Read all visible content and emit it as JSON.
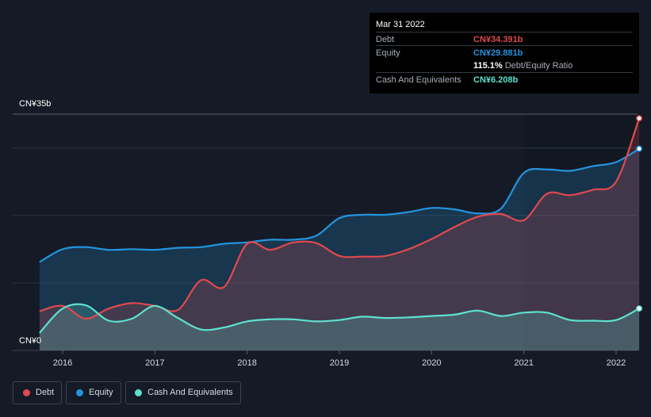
{
  "chart_data": {
    "type": "area",
    "currency_top_label": "CN¥35b",
    "currency_bottom_label": "CN¥0",
    "ylim": [
      0,
      35
    ],
    "xlim": [
      2015.7,
      2022.25
    ],
    "x_ticks": [
      "2016",
      "2017",
      "2018",
      "2019",
      "2020",
      "2021",
      "2022"
    ],
    "series": [
      {
        "name": "Debt",
        "color": "#e0494f",
        "x": [
          2015.75,
          2016.0,
          2016.25,
          2016.5,
          2016.75,
          2017.0,
          2017.25,
          2017.5,
          2017.75,
          2018.0,
          2018.25,
          2018.5,
          2018.75,
          2019.0,
          2019.25,
          2019.5,
          2019.75,
          2020.0,
          2020.25,
          2020.5,
          2020.75,
          2021.0,
          2021.25,
          2021.5,
          2021.75,
          2022.0,
          2022.25
        ],
        "values": [
          5.8,
          6.6,
          4.7,
          6.2,
          7.0,
          6.6,
          6.0,
          10.4,
          9.4,
          15.8,
          14.9,
          16.0,
          15.9,
          14.0,
          13.9,
          14.0,
          15.0,
          16.5,
          18.3,
          19.8,
          20.2,
          19.3,
          23.2,
          23.0,
          23.8,
          25.0,
          34.391
        ]
      },
      {
        "name": "Equity",
        "color": "#2394df",
        "x": [
          2015.75,
          2016.0,
          2016.25,
          2016.5,
          2016.75,
          2017.0,
          2017.25,
          2017.5,
          2017.75,
          2018.0,
          2018.25,
          2018.5,
          2018.75,
          2019.0,
          2019.25,
          2019.5,
          2019.75,
          2020.0,
          2020.25,
          2020.5,
          2020.75,
          2021.0,
          2021.25,
          2021.5,
          2021.75,
          2022.0,
          2022.25
        ],
        "values": [
          13.1,
          15.0,
          15.3,
          14.9,
          15.0,
          14.9,
          15.2,
          15.3,
          15.8,
          16.0,
          16.4,
          16.4,
          17.0,
          19.6,
          20.1,
          20.1,
          20.5,
          21.1,
          20.9,
          20.3,
          21.0,
          26.3,
          26.8,
          26.6,
          27.3,
          27.9,
          29.881
        ]
      },
      {
        "name": "Cash And Equivalents",
        "color": "#5ee0cf",
        "x": [
          2015.75,
          2016.0,
          2016.25,
          2016.5,
          2016.75,
          2017.0,
          2017.25,
          2017.5,
          2017.75,
          2018.0,
          2018.25,
          2018.5,
          2018.75,
          2019.0,
          2019.25,
          2019.5,
          2019.75,
          2020.0,
          2020.25,
          2020.5,
          2020.75,
          2021.0,
          2021.25,
          2021.5,
          2021.75,
          2022.0,
          2022.25
        ],
        "values": [
          2.6,
          6.2,
          6.7,
          4.4,
          4.7,
          6.6,
          4.8,
          3.1,
          3.4,
          4.3,
          4.6,
          4.6,
          4.3,
          4.5,
          5.0,
          4.8,
          4.9,
          5.1,
          5.3,
          5.9,
          5.1,
          5.6,
          5.6,
          4.5,
          4.4,
          4.5,
          6.208
        ]
      }
    ],
    "tooltip": {
      "date": "Mar 31 2022",
      "rows": [
        {
          "label": "Debt",
          "value": "CN¥34.391b",
          "color": "#e0494f"
        },
        {
          "label": "Equity",
          "value": "CN¥29.881b",
          "color": "#2394df"
        },
        {
          "label": "",
          "value": "115.1%",
          "suffix": "Debt/Equity Ratio",
          "color": "#ffffff"
        },
        {
          "label": "Cash And Equivalents",
          "value": "CN¥6.208b",
          "color": "#5ee0cf"
        }
      ]
    },
    "legend": [
      {
        "label": "Debt",
        "color": "#e0494f"
      },
      {
        "label": "Equity",
        "color": "#2394df"
      },
      {
        "label": "Cash And Equivalents",
        "color": "#5ee0cf"
      }
    ]
  }
}
